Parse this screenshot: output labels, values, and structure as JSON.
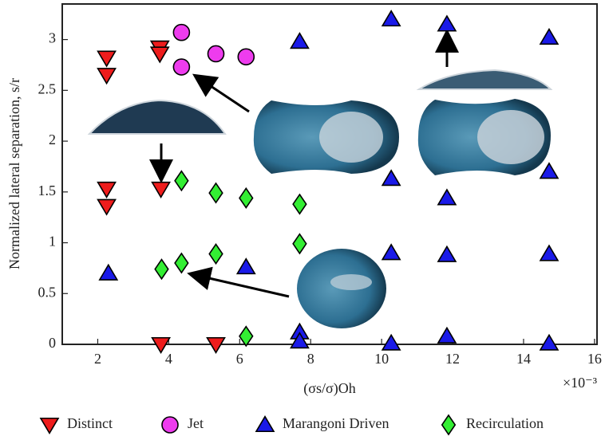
{
  "chart_data": {
    "type": "scatter",
    "xlabel": "(σs/σ)Oh",
    "ylabel": "Normalized lateral separation, s/r",
    "x_multiplier": "×10⁻³",
    "xlim": [
      1,
      16.07
    ],
    "ylim": [
      0,
      3.35
    ],
    "xticks": [
      2,
      4,
      6,
      8,
      10,
      12,
      14,
      16
    ],
    "yticks": [
      0,
      0.5,
      1,
      1.5,
      2,
      2.5,
      3
    ],
    "grid": false,
    "legend": "bottom",
    "series": [
      {
        "name": "Distinct",
        "color": "#ee1c1c",
        "marker": "triangle-down",
        "x": [
          2.25,
          2.25,
          3.75,
          3.75,
          2.25,
          2.25,
          3.78,
          3.78,
          5.33
        ],
        "y": [
          2.82,
          2.65,
          2.92,
          2.86,
          1.53,
          1.36,
          1.53,
          0.0,
          0.0
        ]
      },
      {
        "name": "Jet",
        "color": "#ee3cee",
        "marker": "circle",
        "x": [
          4.36,
          4.36,
          5.33,
          6.18
        ],
        "y": [
          3.07,
          2.73,
          2.86,
          2.83
        ]
      },
      {
        "name": "Marangoni Driven",
        "color": "#1a1ae8",
        "marker": "triangle-up",
        "x": [
          7.69,
          10.27,
          11.84,
          14.72,
          10.27,
          11.84,
          14.72,
          2.3,
          6.18,
          10.27,
          11.84,
          14.72,
          7.69,
          7.69,
          10.27,
          11.84,
          14.72
        ],
        "y": [
          2.98,
          3.2,
          3.15,
          3.02,
          1.63,
          1.44,
          1.7,
          0.7,
          0.76,
          0.9,
          0.88,
          0.89,
          0.12,
          0.03,
          0.01,
          0.08,
          0.01
        ]
      },
      {
        "name": "Recirculation",
        "color": "#33ee33",
        "marker": "diamond",
        "x": [
          4.36,
          5.33,
          6.18,
          7.69,
          7.69,
          5.33,
          4.36,
          3.8,
          6.18
        ],
        "y": [
          1.61,
          1.49,
          1.44,
          1.38,
          0.99,
          0.89,
          0.8,
          0.74,
          0.08
        ]
      }
    ]
  }
}
